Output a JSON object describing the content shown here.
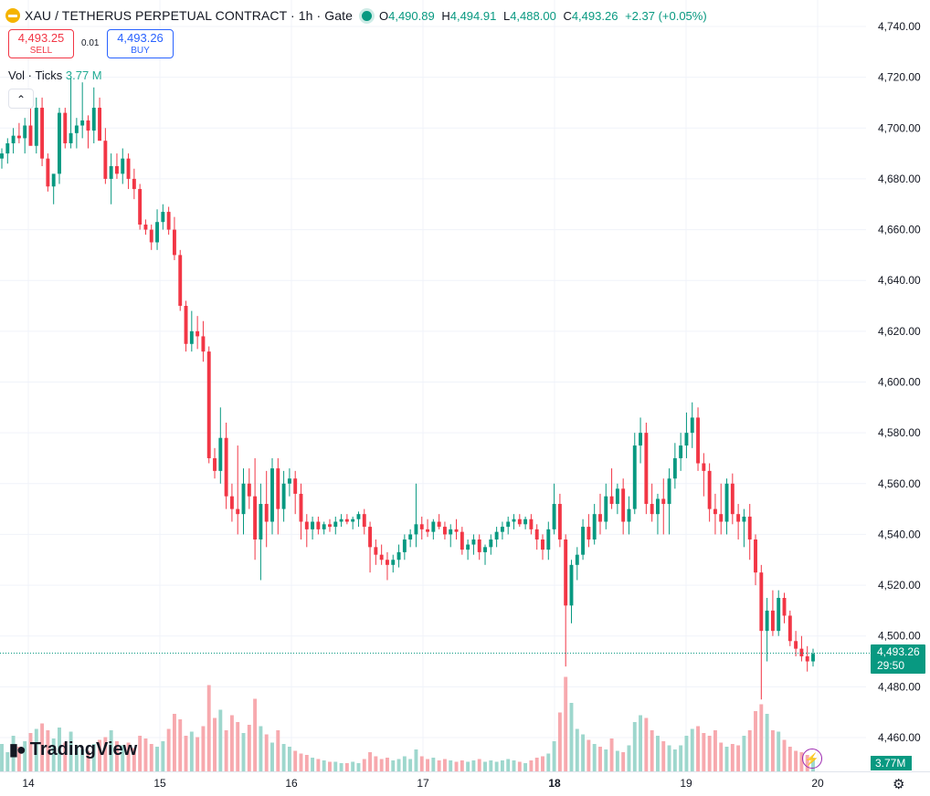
{
  "header": {
    "title": "XAU / TETHERUS PERPETUAL CONTRACT · 1h · Gate",
    "ohlc": {
      "o_label": "O",
      "o": "4,490.89",
      "h_label": "H",
      "h": "4,494.91",
      "l_label": "L",
      "l": "4,488.00",
      "c_label": "C",
      "c": "4,493.26",
      "change": "+2.37 (+0.05%)"
    }
  },
  "trade": {
    "sell_price": "4,493.25",
    "sell_label": "SELL",
    "spread": "0.01",
    "buy_price": "4,493.26",
    "buy_label": "BUY"
  },
  "volume_legend": {
    "label": "Vol · Ticks",
    "value": "3.77 M"
  },
  "price_tag": {
    "price": "4,493.26",
    "countdown": "29:50"
  },
  "volume_tag": "3.77M",
  "branding": {
    "name": "TradingView"
  },
  "icons": [
    "gold-coin-icon",
    "live-status-icon",
    "collapse-chevron-icon",
    "lightning-icon",
    "settings-gear-icon"
  ],
  "colors": {
    "up": "#089981",
    "down": "#f23645",
    "up_volume": "#9ed7cd",
    "down_volume": "#f7a9ae",
    "grid": "#f0f3fa"
  },
  "chart_data": {
    "type": "candlestick",
    "y_ticks": [
      4740,
      4720,
      4700,
      4680,
      4660,
      4640,
      4620,
      4600,
      4580,
      4560,
      4540,
      4520,
      4500,
      4480,
      4460
    ],
    "y_tick_labels": [
      "4,740.00",
      "4,720.00",
      "4,700.00",
      "4,680.00",
      "4,660.00",
      "4,640.00",
      "4,620.00",
      "4,600.00",
      "4,580.00",
      "4,560.00",
      "4,540.00",
      "4,520.00",
      "4,500.00",
      "4,480.00",
      "4,460.00"
    ],
    "ylim": [
      4454,
      4744
    ],
    "x_tick_labels": [
      "14",
      "15",
      "16",
      "17",
      "18",
      "19",
      "20"
    ],
    "last_price": 4493.26,
    "candles": [
      [
        4688,
        4692,
        4684,
        4690,
        2.0
      ],
      [
        4690,
        4696,
        4686,
        4694,
        1.4
      ],
      [
        4694,
        4700,
        4690,
        4697,
        2.6
      ],
      [
        4697,
        4702,
        4694,
        4696,
        1.8
      ],
      [
        4696,
        4704,
        4690,
        4701,
        2.2
      ],
      [
        4701,
        4708,
        4695,
        4693,
        2.8
      ],
      [
        4693,
        4712,
        4690,
        4708,
        3.1
      ],
      [
        4708,
        4712,
        4685,
        4688,
        3.5
      ],
      [
        4688,
        4690,
        4675,
        4677,
        3.0
      ],
      [
        4677,
        4680,
        4670,
        4682,
        2.4
      ],
      [
        4682,
        4708,
        4678,
        4706,
        3.2
      ],
      [
        4706,
        4708,
        4692,
        4694,
        2.1
      ],
      [
        4694,
        4720,
        4692,
        4698,
        2.9
      ],
      [
        4698,
        4704,
        4692,
        4701,
        1.9
      ],
      [
        4701,
        4718,
        4696,
        4703,
        1.6
      ],
      [
        4703,
        4705,
        4692,
        4699,
        1.5
      ],
      [
        4699,
        4716,
        4694,
        4708,
        2.0
      ],
      [
        4708,
        4712,
        4696,
        4695,
        2.3
      ],
      [
        4695,
        4700,
        4678,
        4680,
        2.5
      ],
      [
        4680,
        4690,
        4670,
        4685,
        3.0
      ],
      [
        4685,
        4690,
        4680,
        4682,
        2.2
      ],
      [
        4682,
        4692,
        4678,
        4688,
        1.9
      ],
      [
        4688,
        4690,
        4676,
        4680,
        2.1
      ],
      [
        4680,
        4684,
        4672,
        4676,
        1.7
      ],
      [
        4676,
        4678,
        4660,
        4662,
        2.6
      ],
      [
        4662,
        4664,
        4658,
        4660,
        2.4
      ],
      [
        4660,
        4662,
        4652,
        4655,
        2.0
      ],
      [
        4655,
        4668,
        4652,
        4663,
        1.8
      ],
      [
        4663,
        4670,
        4660,
        4667,
        2.2
      ],
      [
        4667,
        4669,
        4658,
        4660,
        3.1
      ],
      [
        4660,
        4665,
        4648,
        4650,
        4.2
      ],
      [
        4650,
        4652,
        4628,
        4630,
        3.8
      ],
      [
        4630,
        4632,
        4612,
        4615,
        2.6
      ],
      [
        4615,
        4628,
        4612,
        4620,
        2.9
      ],
      [
        4620,
        4626,
        4613,
        4618,
        2.5
      ],
      [
        4618,
        4624,
        4608,
        4612,
        3.3
      ],
      [
        4612,
        4614,
        4568,
        4570,
        6.3
      ],
      [
        4570,
        4574,
        4562,
        4565,
        3.9
      ],
      [
        4565,
        4590,
        4560,
        4578,
        4.5
      ],
      [
        4578,
        4584,
        4550,
        4555,
        3.0
      ],
      [
        4555,
        4560,
        4545,
        4550,
        4.1
      ],
      [
        4550,
        4575,
        4540,
        4548,
        3.6
      ],
      [
        4548,
        4566,
        4540,
        4560,
        2.8
      ],
      [
        4560,
        4566,
        4550,
        4555,
        3.4
      ],
      [
        4555,
        4570,
        4530,
        4538,
        5.3
      ],
      [
        4538,
        4560,
        4522,
        4552,
        3.3
      ],
      [
        4552,
        4565,
        4535,
        4545,
        2.7
      ],
      [
        4545,
        4570,
        4540,
        4566,
        2.1
      ],
      [
        4566,
        4570,
        4540,
        4550,
        3.0
      ],
      [
        4550,
        4565,
        4545,
        4560,
        2.0
      ],
      [
        4560,
        4566,
        4555,
        4562,
        1.8
      ],
      [
        4562,
        4565,
        4548,
        4556,
        1.5
      ],
      [
        4556,
        4560,
        4538,
        4545,
        1.3
      ],
      [
        4545,
        4548,
        4535,
        4542,
        1.2
      ],
      [
        4542,
        4547,
        4538,
        4545,
        1.0
      ],
      [
        4545,
        4547,
        4540,
        4542,
        0.9
      ],
      [
        4542,
        4545,
        4540,
        4544,
        0.8
      ],
      [
        4544,
        4546,
        4541,
        4543,
        0.7
      ],
      [
        4543,
        4547,
        4540,
        4545,
        0.7
      ],
      [
        4545,
        4548,
        4543,
        4546,
        0.6
      ],
      [
        4546,
        4548,
        4544,
        4545,
        0.6
      ],
      [
        4545,
        4547,
        4542,
        4546,
        0.7
      ],
      [
        4546,
        4549,
        4543,
        4548,
        0.6
      ],
      [
        4548,
        4550,
        4540,
        4543,
        0.9
      ],
      [
        4543,
        4545,
        4525,
        4535,
        1.4
      ],
      [
        4535,
        4538,
        4528,
        4532,
        1.1
      ],
      [
        4532,
        4536,
        4528,
        4530,
        0.9
      ],
      [
        4530,
        4533,
        4522,
        4528,
        1.0
      ],
      [
        4528,
        4532,
        4525,
        4530,
        0.8
      ],
      [
        4530,
        4536,
        4527,
        4533,
        0.9
      ],
      [
        4533,
        4540,
        4530,
        4538,
        1.1
      ],
      [
        4538,
        4542,
        4535,
        4540,
        0.9
      ],
      [
        4540,
        4560,
        4535,
        4544,
        1.6
      ],
      [
        4544,
        4547,
        4538,
        4542,
        1.1
      ],
      [
        4542,
        4546,
        4539,
        4541,
        0.9
      ],
      [
        4541,
        4546,
        4538,
        4545,
        1.0
      ],
      [
        4545,
        4548,
        4542,
        4543,
        0.8
      ],
      [
        4543,
        4545,
        4538,
        4540,
        0.9
      ],
      [
        4540,
        4544,
        4535,
        4542,
        0.8
      ],
      [
        4542,
        4546,
        4538,
        4541,
        0.7
      ],
      [
        4541,
        4543,
        4532,
        4534,
        0.8
      ],
      [
        4534,
        4538,
        4530,
        4536,
        0.7
      ],
      [
        4536,
        4540,
        4532,
        4538,
        0.8
      ],
      [
        4538,
        4540,
        4530,
        4533,
        0.9
      ],
      [
        4533,
        4536,
        4528,
        4535,
        0.7
      ],
      [
        4535,
        4540,
        4532,
        4538,
        0.8
      ],
      [
        4538,
        4543,
        4535,
        4541,
        0.7
      ],
      [
        4541,
        4545,
        4538,
        4543,
        0.8
      ],
      [
        4543,
        4547,
        4540,
        4545,
        0.9
      ],
      [
        4545,
        4548,
        4542,
        4546,
        0.8
      ],
      [
        4546,
        4548,
        4543,
        4544,
        0.7
      ],
      [
        4544,
        4547,
        4542,
        4546,
        0.6
      ],
      [
        4546,
        4548,
        4540,
        4542,
        0.8
      ],
      [
        4542,
        4544,
        4534,
        4538,
        1.0
      ],
      [
        4538,
        4540,
        4530,
        4534,
        1.1
      ],
      [
        4534,
        4545,
        4530,
        4542,
        1.3
      ],
      [
        4542,
        4560,
        4540,
        4552,
        2.2
      ],
      [
        4552,
        4556,
        4535,
        4538,
        4.3
      ],
      [
        4538,
        4540,
        4488,
        4512,
        6.9
      ],
      [
        4512,
        4530,
        4505,
        4528,
        5.0
      ],
      [
        4528,
        4535,
        4522,
        4532,
        3.1
      ],
      [
        4532,
        4546,
        4530,
        4543,
        2.7
      ],
      [
        4543,
        4548,
        4535,
        4538,
        2.3
      ],
      [
        4538,
        4552,
        4536,
        4548,
        2.0
      ],
      [
        4548,
        4556,
        4540,
        4545,
        1.8
      ],
      [
        4545,
        4560,
        4542,
        4555,
        1.6
      ],
      [
        4555,
        4566,
        4550,
        4552,
        2.4
      ],
      [
        4552,
        4560,
        4548,
        4558,
        1.5
      ],
      [
        4558,
        4562,
        4540,
        4545,
        1.4
      ],
      [
        4545,
        4555,
        4540,
        4550,
        1.9
      ],
      [
        4550,
        4580,
        4548,
        4575,
        3.6
      ],
      [
        4575,
        4586,
        4568,
        4580,
        4.1
      ],
      [
        4580,
        4584,
        4548,
        4552,
        3.9
      ],
      [
        4552,
        4560,
        4545,
        4548,
        3.0
      ],
      [
        4548,
        4556,
        4540,
        4554,
        2.6
      ],
      [
        4554,
        4562,
        4540,
        4552,
        2.2
      ],
      [
        4552,
        4566,
        4540,
        4562,
        1.9
      ],
      [
        4562,
        4576,
        4558,
        4570,
        1.6
      ],
      [
        4570,
        4580,
        4565,
        4575,
        1.9
      ],
      [
        4575,
        4588,
        4570,
        4580,
        2.6
      ],
      [
        4580,
        4592,
        4574,
        4586,
        3.1
      ],
      [
        4586,
        4590,
        4565,
        4568,
        3.3
      ],
      [
        4568,
        4572,
        4555,
        4565,
        2.8
      ],
      [
        4565,
        4568,
        4545,
        4550,
        2.6
      ],
      [
        4550,
        4556,
        4540,
        4548,
        3.0
      ],
      [
        4548,
        4560,
        4540,
        4545,
        2.1
      ],
      [
        4545,
        4562,
        4540,
        4560,
        1.8
      ],
      [
        4560,
        4564,
        4544,
        4548,
        2.0
      ],
      [
        4548,
        4552,
        4538,
        4545,
        1.9
      ],
      [
        4545,
        4550,
        4535,
        4547,
        2.6
      ],
      [
        4547,
        4552,
        4530,
        4538,
        3.0
      ],
      [
        4538,
        4540,
        4520,
        4525,
        4.4
      ],
      [
        4525,
        4528,
        4475,
        4502,
        4.9
      ],
      [
        4502,
        4515,
        4490,
        4510,
        4.2
      ],
      [
        4510,
        4518,
        4500,
        4502,
        3.0
      ],
      [
        4502,
        4518,
        4500,
        4515,
        2.9
      ],
      [
        4515,
        4517,
        4505,
        4508,
        2.3
      ],
      [
        4508,
        4510,
        4496,
        4498,
        1.8
      ],
      [
        4498,
        4502,
        4492,
        4495,
        1.5
      ],
      [
        4495,
        4500,
        4490,
        4492,
        1.4
      ],
      [
        4492,
        4496,
        4486,
        4490,
        1.2
      ],
      [
        4490,
        4495,
        4488,
        4493,
        1.0
      ]
    ]
  }
}
